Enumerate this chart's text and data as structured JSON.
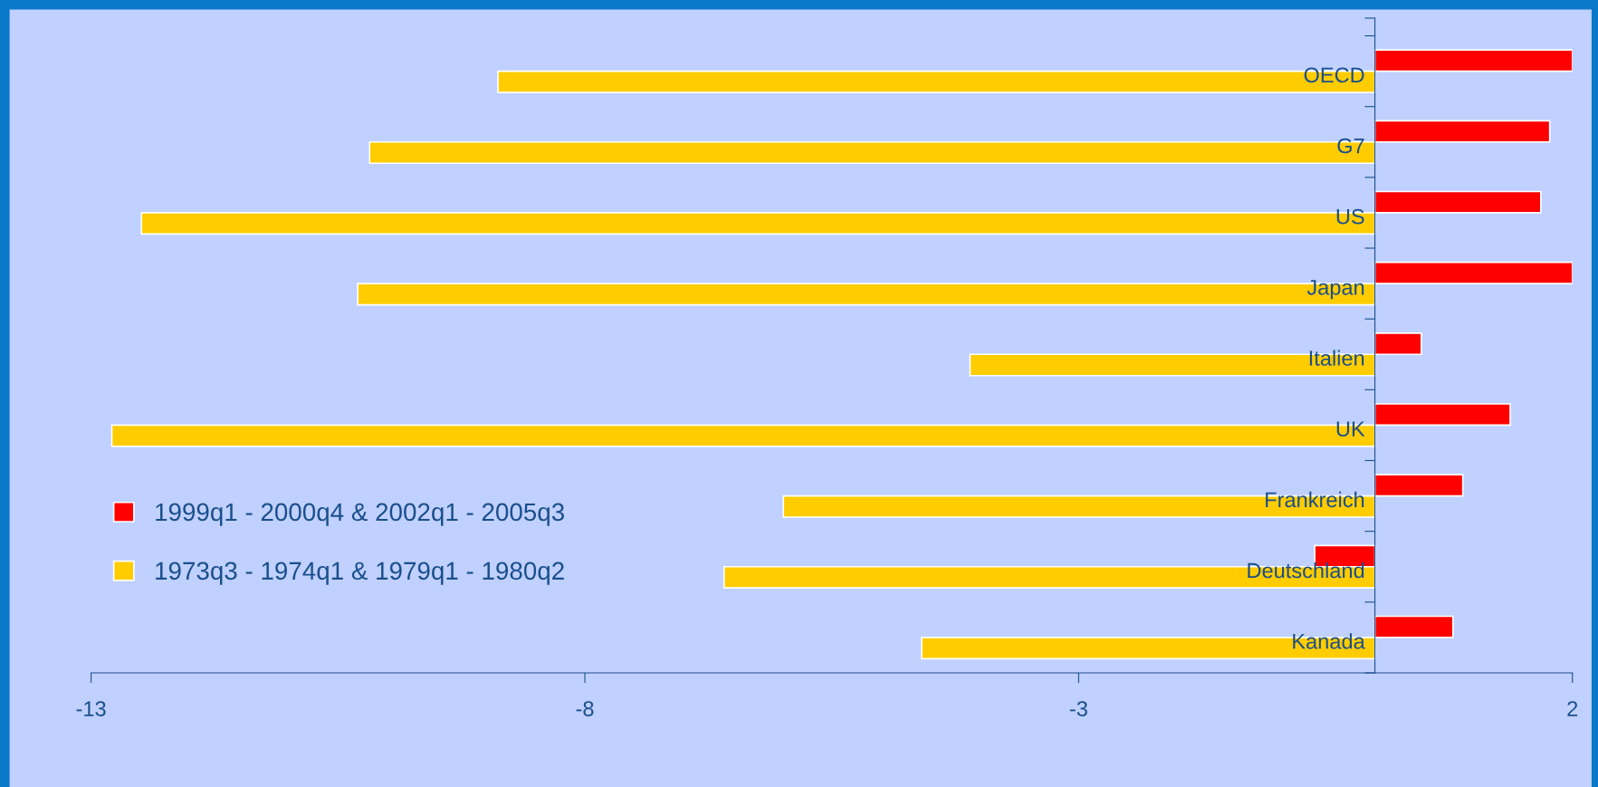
{
  "chart_data": {
    "type": "bar",
    "orientation": "horizontal",
    "categories": [
      "OECD",
      "G7",
      "US",
      "Japan",
      "Italien",
      "UK",
      "Frankreich",
      "Deutschland",
      "Kanada"
    ],
    "series": [
      {
        "name": "1999q1 - 2000q4 & 2002q1 - 2005q3",
        "color": "#ff0000",
        "values": [
          2.0,
          1.77,
          1.68,
          2.0,
          0.47,
          1.37,
          0.89,
          -0.61,
          0.79
        ]
      },
      {
        "name": "1973q3 - 1974q1 & 1979q1 - 1980q2",
        "color": "#ffcc00",
        "values": [
          -8.88,
          -10.18,
          -12.49,
          -10.3,
          -4.1,
          -12.79,
          -5.99,
          -6.59,
          -4.59
        ]
      }
    ],
    "xlim": [
      -13,
      2
    ],
    "xticks": [
      -13,
      -8,
      -3,
      2
    ],
    "grid": false,
    "legend": "lower left"
  }
}
